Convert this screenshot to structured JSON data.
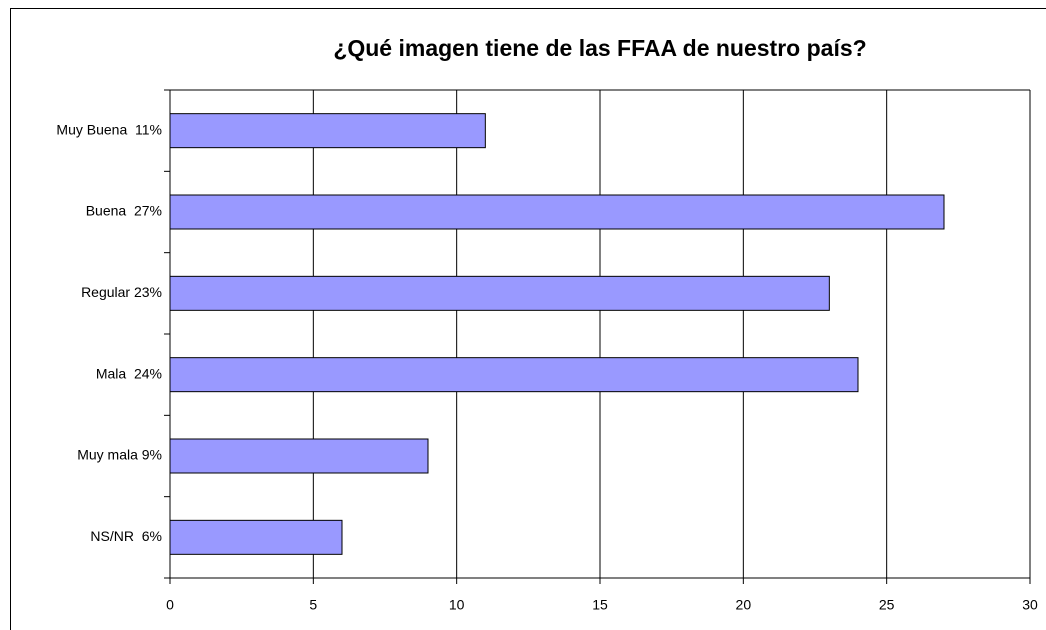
{
  "chart_data": {
    "type": "bar",
    "orientation": "horizontal",
    "title": "¿Qué imagen tiene de las FFAA de nuestro país?",
    "categories": [
      "Muy Buena  11%",
      "Buena  27%",
      "Regular 23%",
      "Mala  24%",
      "Muy mala 9%",
      "NS/NR  6%"
    ],
    "values": [
      11,
      27,
      23,
      24,
      9,
      6
    ],
    "color": "#9999ff",
    "xlim": [
      0,
      30
    ],
    "xticks": [
      0,
      5,
      10,
      15,
      20,
      25,
      30
    ],
    "grid": true
  }
}
